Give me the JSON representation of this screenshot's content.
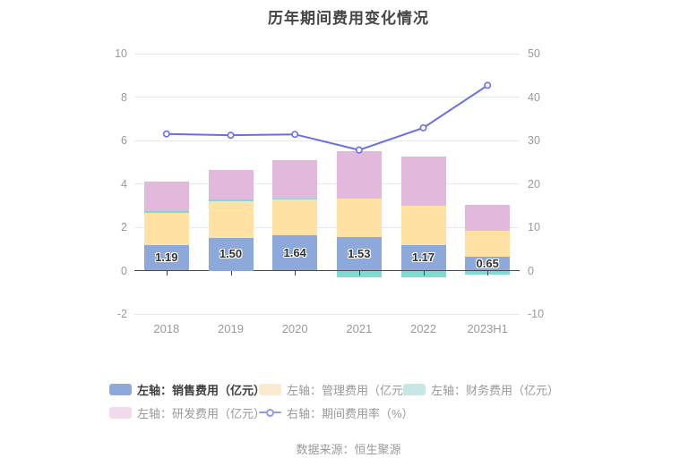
{
  "title": "历年期间费用变化情况",
  "source": "数据来源：恒生聚源",
  "legend": {
    "items": [
      {
        "label": "左轴：销售费用（亿元）",
        "marker": "rect",
        "swatch_color": "#8DA8DA",
        "emphasized": true
      },
      {
        "label": "左轴：管理费用（亿元）",
        "marker": "rect",
        "swatch_color": "#FAEACC",
        "emphasized": false
      },
      {
        "label": "左轴：财务费用（亿元）",
        "marker": "rect",
        "swatch_color": "#C4E8E5",
        "emphasized": false
      },
      {
        "label": "左轴：研发费用（亿元）",
        "marker": "rect",
        "swatch_color": "#F2DAEC",
        "emphasized": false
      },
      {
        "label": "右轴：期间费用率（%）",
        "marker": "line",
        "swatch_color": "#9698EC",
        "emphasized": false
      }
    ]
  },
  "chart_data": {
    "type": "bar",
    "subtype": "stacked-bar-with-line",
    "categories": [
      "2018",
      "2019",
      "2020",
      "2021",
      "2022",
      "2023H1"
    ],
    "series": [
      {
        "name": "左轴：销售费用（亿元）",
        "type": "bar",
        "stack": true,
        "axis": "left",
        "color": "#8DA8DA",
        "values": [
          1.19,
          1.5,
          1.64,
          1.53,
          1.17,
          0.65
        ],
        "data_labels": [
          "1.19",
          "1.50",
          "1.64",
          "1.53",
          "1.17",
          "0.65"
        ]
      },
      {
        "name": "左轴：管理费用（亿元）",
        "type": "bar",
        "stack": true,
        "axis": "left",
        "color": "#FFE1A3",
        "values": [
          1.48,
          1.7,
          1.62,
          1.8,
          1.84,
          1.2
        ]
      },
      {
        "name": "左轴：财务费用（亿元）",
        "type": "bar",
        "stack": true,
        "axis": "left",
        "color": "#7FDAD4",
        "values": [
          0.06,
          0.07,
          0.05,
          -0.32,
          -0.3,
          -0.2
        ]
      },
      {
        "name": "左轴：研发费用（亿元）",
        "type": "bar",
        "stack": true,
        "axis": "left",
        "color": "#E2B8DC",
        "values": [
          1.39,
          1.36,
          1.8,
          2.18,
          2.24,
          1.2
        ]
      },
      {
        "name": "右轴：期间费用率（%）",
        "type": "line",
        "axis": "right",
        "color": "#6B6EE5",
        "marker_fill": "#ffffff",
        "values": [
          31.5,
          31.2,
          31.4,
          27.8,
          32.9,
          42.7
        ]
      }
    ],
    "left_axis": {
      "min": -2,
      "max": 10,
      "ticks": [
        10,
        8,
        6,
        4,
        2,
        0,
        -2
      ]
    },
    "right_axis": {
      "min": -10,
      "max": 50,
      "ticks": [
        50,
        40,
        30,
        20,
        10,
        0,
        -10
      ]
    },
    "grid": "horizontal-only",
    "legend_position": "bottom-left",
    "ylabel": "",
    "xlabel": ""
  }
}
